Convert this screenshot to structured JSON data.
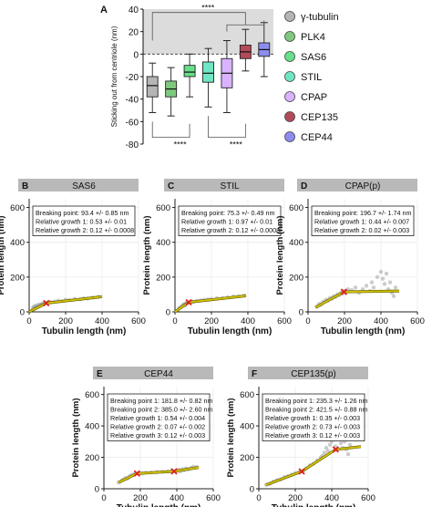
{
  "chart_data": [
    {
      "id": "A",
      "type": "box",
      "panel_letter": "A",
      "ylabel": "Sticking out from centriole (nm)",
      "ylim": [
        -80,
        40
      ],
      "yticks": [
        "40",
        "20",
        "0",
        "-20",
        "-40",
        "-60",
        "-80"
      ],
      "shaded_region": [
        0,
        40
      ],
      "legend_placement": "right",
      "legend": [
        {
          "name": "γ-tubulin",
          "color": "#b5b5b5"
        },
        {
          "name": "PLK4",
          "color": "#7fc97f"
        },
        {
          "name": "SAS6",
          "color": "#66e08a"
        },
        {
          "name": "STIL",
          "color": "#6fe6c4"
        },
        {
          "name": "CPAP",
          "color": "#d9b3ff"
        },
        {
          "name": "CEP135",
          "color": "#b24a5a"
        },
        {
          "name": "CEP44",
          "color": "#8c8cf0"
        }
      ],
      "boxes": [
        {
          "series": "γ-tubulin",
          "color": "#b5b5b5",
          "whisker_low": -52,
          "q1": -38,
          "median": -28,
          "q3": -20,
          "whisker_high": -8
        },
        {
          "series": "PLK4",
          "color": "#7fc97f",
          "whisker_low": -55,
          "q1": -38,
          "median": -31,
          "q3": -24,
          "whisker_high": -12
        },
        {
          "series": "SAS6",
          "color": "#66e08a",
          "whisker_low": -38,
          "q1": -20,
          "median": -16,
          "q3": -10,
          "whisker_high": 0
        },
        {
          "series": "STIL",
          "color": "#6fe6c4",
          "whisker_low": -47,
          "q1": -25,
          "median": -17,
          "q3": -7,
          "whisker_high": 5
        },
        {
          "series": "CPAP",
          "color": "#d9b3ff",
          "whisker_low": -52,
          "q1": -30,
          "median": -17,
          "q3": -4,
          "whisker_high": 12
        },
        {
          "series": "CEP135",
          "color": "#b24a5a",
          "whisker_low": -15,
          "q1": -4,
          "median": 2,
          "q3": 8,
          "whisker_high": 22
        },
        {
          "series": "CEP44",
          "color": "#8c8cf0",
          "whisker_low": -20,
          "q1": -2,
          "median": 4,
          "q3": 10,
          "whisker_high": 28
        }
      ],
      "significance": [
        "****",
        "****",
        "****"
      ]
    },
    {
      "id": "B",
      "type": "scatter",
      "panel_letter": "B",
      "title": "SAS6",
      "xlabel": "Tubulin length (nm)",
      "ylabel": "Protein length (nm)",
      "xlim": [
        0,
        600
      ],
      "ylim": [
        0,
        650
      ],
      "xticks": [
        "0",
        "200",
        "400",
        "600"
      ],
      "yticks": [
        "0",
        "200",
        "400",
        "600"
      ],
      "annotation": [
        "Breaking point: 93.4 +/- 0.85 nm",
        "Relative growth 1: 0.53 +/- 0.01",
        "Relative growth 2: 0.12 +/- 0.0008"
      ],
      "fit_line": [
        [
          0,
          0
        ],
        [
          93.4,
          50
        ],
        [
          400,
          87
        ]
      ],
      "breakpoints": [
        [
          93.4,
          50
        ]
      ],
      "points": [
        [
          20,
          22
        ],
        [
          25,
          30
        ],
        [
          30,
          25
        ],
        [
          35,
          35
        ],
        [
          40,
          28
        ],
        [
          45,
          38
        ],
        [
          50,
          32
        ],
        [
          55,
          42
        ],
        [
          60,
          36
        ],
        [
          65,
          40
        ],
        [
          70,
          46
        ],
        [
          75,
          44
        ],
        [
          80,
          48
        ],
        [
          90,
          52
        ],
        [
          100,
          54
        ],
        [
          110,
          58
        ],
        [
          120,
          56
        ],
        [
          140,
          60
        ],
        [
          160,
          64
        ],
        [
          180,
          62
        ],
        [
          200,
          70
        ],
        [
          220,
          68
        ],
        [
          250,
          74
        ],
        [
          280,
          72
        ],
        [
          300,
          78
        ],
        [
          320,
          76
        ],
        [
          350,
          82
        ],
        [
          380,
          86
        ]
      ]
    },
    {
      "id": "C",
      "type": "scatter",
      "panel_letter": "C",
      "title": "STIL",
      "xlabel": "Tubulin length (nm)",
      "ylabel": "Protein length (nm)",
      "xlim": [
        0,
        600
      ],
      "ylim": [
        0,
        650
      ],
      "xticks": [
        "0",
        "200",
        "400",
        "600"
      ],
      "yticks": [
        "0",
        "200",
        "400",
        "600"
      ],
      "annotation": [
        "Breaking point: 75.3 +/- 0.49 nm",
        "Relative growth 1: 0.97 +/- 0.01",
        "Relative growth 2: 0.12 +/- 0.0008"
      ],
      "fit_line": [
        [
          0,
          0
        ],
        [
          75.3,
          55
        ],
        [
          390,
          92
        ]
      ],
      "breakpoints": [
        [
          75.3,
          55
        ]
      ],
      "points": [
        [
          20,
          20
        ],
        [
          30,
          28
        ],
        [
          40,
          35
        ],
        [
          45,
          40
        ],
        [
          50,
          45
        ],
        [
          55,
          38
        ],
        [
          60,
          50
        ],
        [
          70,
          52
        ],
        [
          80,
          56
        ],
        [
          90,
          60
        ],
        [
          100,
          58
        ],
        [
          120,
          64
        ],
        [
          140,
          66
        ],
        [
          160,
          70
        ],
        [
          180,
          72
        ],
        [
          200,
          74
        ],
        [
          230,
          78
        ],
        [
          260,
          80
        ],
        [
          290,
          84
        ],
        [
          320,
          88
        ],
        [
          350,
          90
        ],
        [
          380,
          94
        ]
      ]
    },
    {
      "id": "D",
      "type": "scatter",
      "panel_letter": "D",
      "title": "CPAP(p)",
      "xlabel": "Tubulin length (nm)",
      "ylabel": "Protein length (nm)",
      "xlim": [
        0,
        600
      ],
      "ylim": [
        0,
        650
      ],
      "xticks": [
        "0",
        "200",
        "400",
        "600"
      ],
      "yticks": [
        "0",
        "200",
        "400",
        "600"
      ],
      "annotation": [
        "Breaking point: 196.7 +/- 1.74 nm",
        "Relative growth 1: 0.44 +/- 0.007",
        "Relative growth 2: 0.02 +/- 0.003"
      ],
      "fit_line": [
        [
          40,
          25
        ],
        [
          196.7,
          115
        ],
        [
          500,
          120
        ]
      ],
      "breakpoints": [
        [
          196.7,
          115
        ]
      ],
      "points": [
        [
          50,
          30
        ],
        [
          60,
          45
        ],
        [
          70,
          40
        ],
        [
          80,
          55
        ],
        [
          90,
          60
        ],
        [
          100,
          70
        ],
        [
          110,
          65
        ],
        [
          120,
          80
        ],
        [
          130,
          75
        ],
        [
          140,
          90
        ],
        [
          150,
          85
        ],
        [
          160,
          100
        ],
        [
          170,
          95
        ],
        [
          180,
          110
        ],
        [
          190,
          105
        ],
        [
          200,
          120
        ],
        [
          220,
          130
        ],
        [
          240,
          125
        ],
        [
          260,
          140
        ],
        [
          280,
          110
        ],
        [
          300,
          130
        ],
        [
          320,
          150
        ],
        [
          340,
          120
        ],
        [
          350,
          170
        ],
        [
          360,
          140
        ],
        [
          380,
          200
        ],
        [
          400,
          230
        ],
        [
          410,
          190
        ],
        [
          420,
          160
        ],
        [
          430,
          220
        ],
        [
          440,
          130
        ],
        [
          450,
          170
        ],
        [
          460,
          110
        ],
        [
          470,
          90
        ],
        [
          480,
          140
        ]
      ]
    },
    {
      "id": "E",
      "type": "scatter",
      "panel_letter": "E",
      "title": "CEP44",
      "xlabel": "Tubulin length (nm)",
      "ylabel": "Protein length (nm)",
      "xlim": [
        0,
        600
      ],
      "ylim": [
        0,
        650
      ],
      "xticks": [
        "0",
        "200",
        "400",
        "600"
      ],
      "yticks": [
        "0",
        "200",
        "400",
        "600"
      ],
      "annotation": [
        "Breaking point 1: 181.8 +/- 0.82 nm",
        "Breaking point 2: 385.0 +/- 2.60 nm",
        "Relative growth 1: 0.54 +/- 0.004",
        "Relative growth 2: 0.07 +/- 0.002",
        "Relative growth 3: 0.12 +/- 0.003"
      ],
      "fit_line": [
        [
          80,
          40
        ],
        [
          181.8,
          97
        ],
        [
          385,
          111
        ],
        [
          520,
          135
        ]
      ],
      "breakpoints": [
        [
          181.8,
          97
        ],
        [
          385,
          111
        ]
      ],
      "points": [
        [
          80,
          40
        ],
        [
          100,
          55
        ],
        [
          110,
          60
        ],
        [
          120,
          70
        ],
        [
          130,
          65
        ],
        [
          140,
          80
        ],
        [
          150,
          85
        ],
        [
          160,
          90
        ],
        [
          170,
          95
        ],
        [
          190,
          100
        ],
        [
          210,
          98
        ],
        [
          230,
          102
        ],
        [
          260,
          104
        ],
        [
          290,
          106
        ],
        [
          320,
          108
        ],
        [
          350,
          110
        ],
        [
          370,
          112
        ],
        [
          400,
          115
        ],
        [
          410,
          120
        ],
        [
          420,
          110
        ],
        [
          430,
          125
        ],
        [
          440,
          118
        ],
        [
          450,
          130
        ],
        [
          460,
          124
        ],
        [
          470,
          128
        ],
        [
          480,
          132
        ],
        [
          490,
          140
        ],
        [
          500,
          134
        ],
        [
          510,
          138
        ]
      ]
    },
    {
      "id": "F",
      "type": "scatter",
      "panel_letter": "F",
      "title": "CEP135(p)",
      "xlabel": "Tubulin length (nm)",
      "ylabel": "Protein length (nm)",
      "xlim": [
        0,
        600
      ],
      "ylim": [
        0,
        650
      ],
      "xticks": [
        "0",
        "200",
        "400",
        "600"
      ],
      "yticks": [
        "0",
        "200",
        "400",
        "600"
      ],
      "annotation": [
        "Breaking point 1: 235.3 +/- 1.26 nm",
        "Breaking point 2: 421.5 +/- 0.88 nm",
        "Relative growth 1: 0.35 +/- 0.003",
        "Relative growth 2: 0.73 +/- 0.003",
        "Relative growth 3: 0.12 +/- 0.003"
      ],
      "fit_line": [
        [
          40,
          25
        ],
        [
          235.3,
          110
        ],
        [
          421.5,
          250
        ],
        [
          560,
          268
        ]
      ],
      "breakpoints": [
        [
          235.3,
          110
        ],
        [
          421.5,
          250
        ]
      ],
      "points": [
        [
          40,
          25
        ],
        [
          60,
          30
        ],
        [
          80,
          45
        ],
        [
          100,
          55
        ],
        [
          120,
          60
        ],
        [
          140,
          75
        ],
        [
          160,
          80
        ],
        [
          180,
          90
        ],
        [
          200,
          100
        ],
        [
          220,
          105
        ],
        [
          240,
          110
        ],
        [
          260,
          130
        ],
        [
          280,
          150
        ],
        [
          300,
          160
        ],
        [
          320,
          180
        ],
        [
          340,
          200
        ],
        [
          350,
          210
        ],
        [
          360,
          230
        ],
        [
          370,
          260
        ],
        [
          380,
          240
        ],
        [
          390,
          280
        ],
        [
          400,
          300
        ],
        [
          410,
          330
        ],
        [
          420,
          270
        ],
        [
          430,
          360
        ],
        [
          440,
          320
        ],
        [
          450,
          290
        ],
        [
          460,
          260
        ],
        [
          470,
          300
        ],
        [
          480,
          250
        ],
        [
          490,
          220
        ],
        [
          500,
          280
        ]
      ]
    }
  ]
}
